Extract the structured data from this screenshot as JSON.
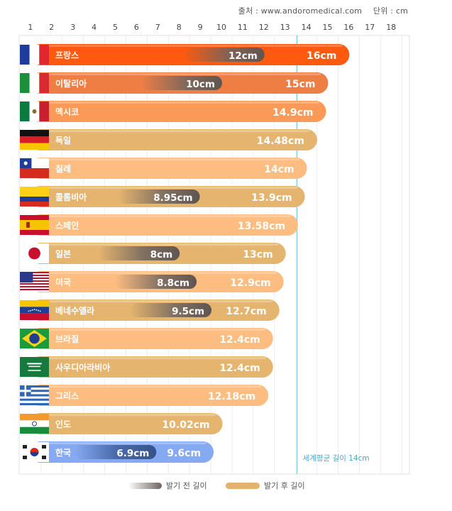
{
  "source": {
    "text": "출처 : www.andoromedical.com",
    "unit": "단위 : cm"
  },
  "chart_data": {
    "type": "bar",
    "orientation": "horizontal",
    "xlim": [
      0,
      18
    ],
    "ticks": [
      1,
      2,
      3,
      4,
      5,
      6,
      7,
      8,
      9,
      10,
      11,
      12,
      13,
      14,
      15,
      16,
      17,
      18
    ],
    "grid": true,
    "unit": "cm",
    "categories": [
      "프랑스",
      "이탈리아",
      "멕시코",
      "독일",
      "칠레",
      "콜롬비아",
      "스페인",
      "일본",
      "미국",
      "베네수엘라",
      "브라질",
      "사우디아라비아",
      "그리스",
      "인도",
      "한국"
    ],
    "flags": [
      "france-flag",
      "italy-flag",
      "mexico-flag",
      "germany-flag",
      "chile-flag",
      "colombia-flag",
      "spain-flag",
      "japan-flag",
      "usa-flag",
      "venezuela-flag",
      "brazil-flag",
      "saudi-arabia-flag",
      "greece-flag",
      "india-flag",
      "korea-flag"
    ],
    "series": [
      {
        "name": "발기 전 길이",
        "values": [
          12,
          10,
          null,
          null,
          null,
          8.95,
          null,
          8,
          8.8,
          9.5,
          null,
          null,
          null,
          null,
          6.9
        ],
        "labels": [
          "12cm",
          "10cm",
          "",
          "",
          "",
          "8.95cm",
          "",
          "8cm",
          "8.8cm",
          "9.5cm",
          "",
          "",
          "",
          "",
          "6.9cm"
        ]
      },
      {
        "name": "발기 후 길이",
        "values": [
          16,
          15,
          14.9,
          14.48,
          14,
          13.9,
          13.58,
          13,
          12.9,
          12.7,
          12.4,
          12.4,
          12.18,
          10.02,
          9.6
        ],
        "labels": [
          "16cm",
          "15cm",
          "14.9cm",
          "14.48cm",
          "14cm",
          "13.9cm",
          "13.58cm",
          "13cm",
          "12.9cm",
          "12.7cm",
          "12.4cm",
          "12.4cm",
          "12.18cm",
          "10.02cm",
          "9.6cm"
        ]
      }
    ],
    "bar_colors": [
      "#fd5a10",
      "#ef7e45",
      "#fb9a56",
      "#e5b46f",
      "#fdbd80",
      "#e5b46f",
      "#fdbd80",
      "#e5b46f",
      "#fdbd80",
      "#e5b46f",
      "#fdbd80",
      "#e5b46f",
      "#fdbd80",
      "#e5b46f",
      "#86aaf1"
    ],
    "reference_line": {
      "value": 14,
      "label": "세계평균 길이 14cm",
      "color": "#6bbbd6"
    },
    "legend": {
      "before": "발기 전 길이",
      "after": "발기 후 길이",
      "placement": "bottom"
    }
  }
}
